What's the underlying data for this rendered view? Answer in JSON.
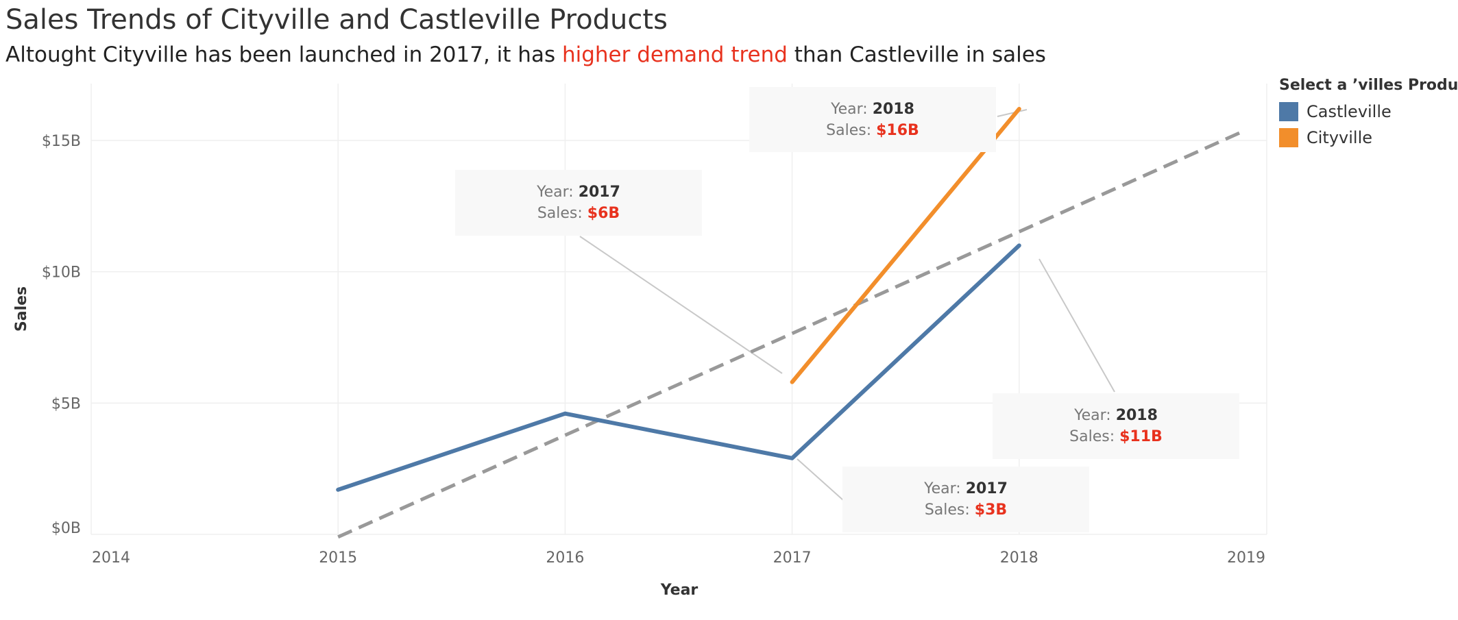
{
  "header": {
    "title": "Sales Trends of Cityville and Castleville Products",
    "subtitle_pre": "Altought Cityville has been launched in 2017, it has ",
    "subtitle_highlight": "higher demand trend",
    "subtitle_post": " than Castleville in sales"
  },
  "colors": {
    "castleville": "#4e79a7",
    "cityville": "#f28e2b",
    "trend": "#999999",
    "highlight": "#e8321e"
  },
  "chart_data": {
    "type": "line",
    "xlabel": "Year",
    "ylabel": "Sales",
    "x_ticks": [
      "2014",
      "2015",
      "2016",
      "2017",
      "2018",
      "2019"
    ],
    "y_ticks": [
      "$0B",
      "$5B",
      "$10B",
      "$15B"
    ],
    "xlim": [
      2014,
      2019
    ],
    "ylim": [
      0,
      16.5
    ],
    "series": [
      {
        "name": "Castleville",
        "x": [
          2015,
          2016,
          2017,
          2018
        ],
        "y": [
          1.7,
          4.6,
          2.9,
          11.0
        ]
      },
      {
        "name": "Cityville",
        "x": [
          2017,
          2018
        ],
        "y": [
          5.8,
          16.2
        ]
      }
    ],
    "trend_line": {
      "style": "dashed",
      "x": [
        2015,
        2019
      ],
      "y": [
        -0.1,
        15.4
      ]
    },
    "legend": {
      "title": "Select a  ’villes Product",
      "position": "right",
      "items": [
        "Castleville",
        "Cityville"
      ]
    },
    "annotations": [
      {
        "year_label": "Year:",
        "year": "2018",
        "sales_label": "Sales:",
        "sales": "$16B"
      },
      {
        "year_label": "Year:",
        "year": "2017",
        "sales_label": "Sales:",
        "sales": "$6B"
      },
      {
        "year_label": "Year:",
        "year": "2018",
        "sales_label": "Sales:",
        "sales": "$11B"
      },
      {
        "year_label": "Year:",
        "year": "2017",
        "sales_label": "Sales:",
        "sales": "$3B"
      }
    ]
  }
}
